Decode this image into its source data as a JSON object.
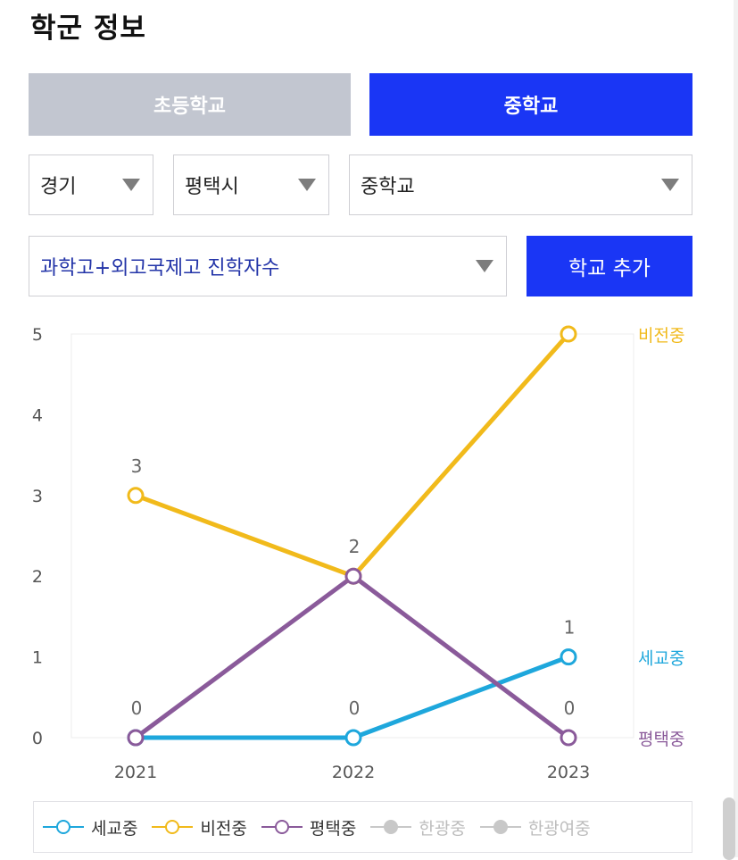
{
  "page": {
    "title": "학군 정보"
  },
  "tabs": [
    {
      "label": "초등학교",
      "active": false
    },
    {
      "label": "중학교",
      "active": true
    }
  ],
  "filters": {
    "region": "경기",
    "city": "평택시",
    "level": "중학교",
    "metric": "과학고+외고국제고 진학자수",
    "add_button": "학교 추가"
  },
  "colors": {
    "accent": "#1a36f5",
    "inactive_tab": "#c2c6d0",
    "세교중": "#1ea7dc",
    "비전중": "#f1ba1b",
    "평택중": "#8a5a9a",
    "disabled": "#c8c8c8"
  },
  "chart_data": {
    "type": "line",
    "x": [
      "2021",
      "2022",
      "2023"
    ],
    "ylim": [
      0,
      5
    ],
    "yticks": [
      "0",
      "1",
      "2",
      "3",
      "4",
      "5"
    ],
    "series": [
      {
        "name": "세교중",
        "values": [
          0,
          0,
          1
        ],
        "color": "#1ea7dc"
      },
      {
        "name": "비전중",
        "values": [
          3,
          2,
          5
        ],
        "color": "#f1ba1b"
      },
      {
        "name": "평택중",
        "values": [
          0,
          2,
          0
        ],
        "color": "#8a5a9a"
      }
    ],
    "data_labels": [
      {
        "value": "3",
        "series": "비전중",
        "index": 0
      },
      {
        "value": "0",
        "series": "평택중",
        "index": 0
      },
      {
        "value": "2",
        "series": "평택중",
        "index": 1
      },
      {
        "value": "0",
        "series": "세교중",
        "index": 1
      },
      {
        "value": "1",
        "series": "세교중",
        "index": 2
      },
      {
        "value": "0",
        "series": "평택중",
        "index": 2
      }
    ],
    "end_labels": [
      "비전중",
      "세교중",
      "평택중"
    ],
    "legend": [
      {
        "name": "세교중",
        "enabled": true
      },
      {
        "name": "비전중",
        "enabled": true
      },
      {
        "name": "평택중",
        "enabled": true
      },
      {
        "name": "한광중",
        "enabled": false
      },
      {
        "name": "한광여중",
        "enabled": false
      }
    ]
  }
}
